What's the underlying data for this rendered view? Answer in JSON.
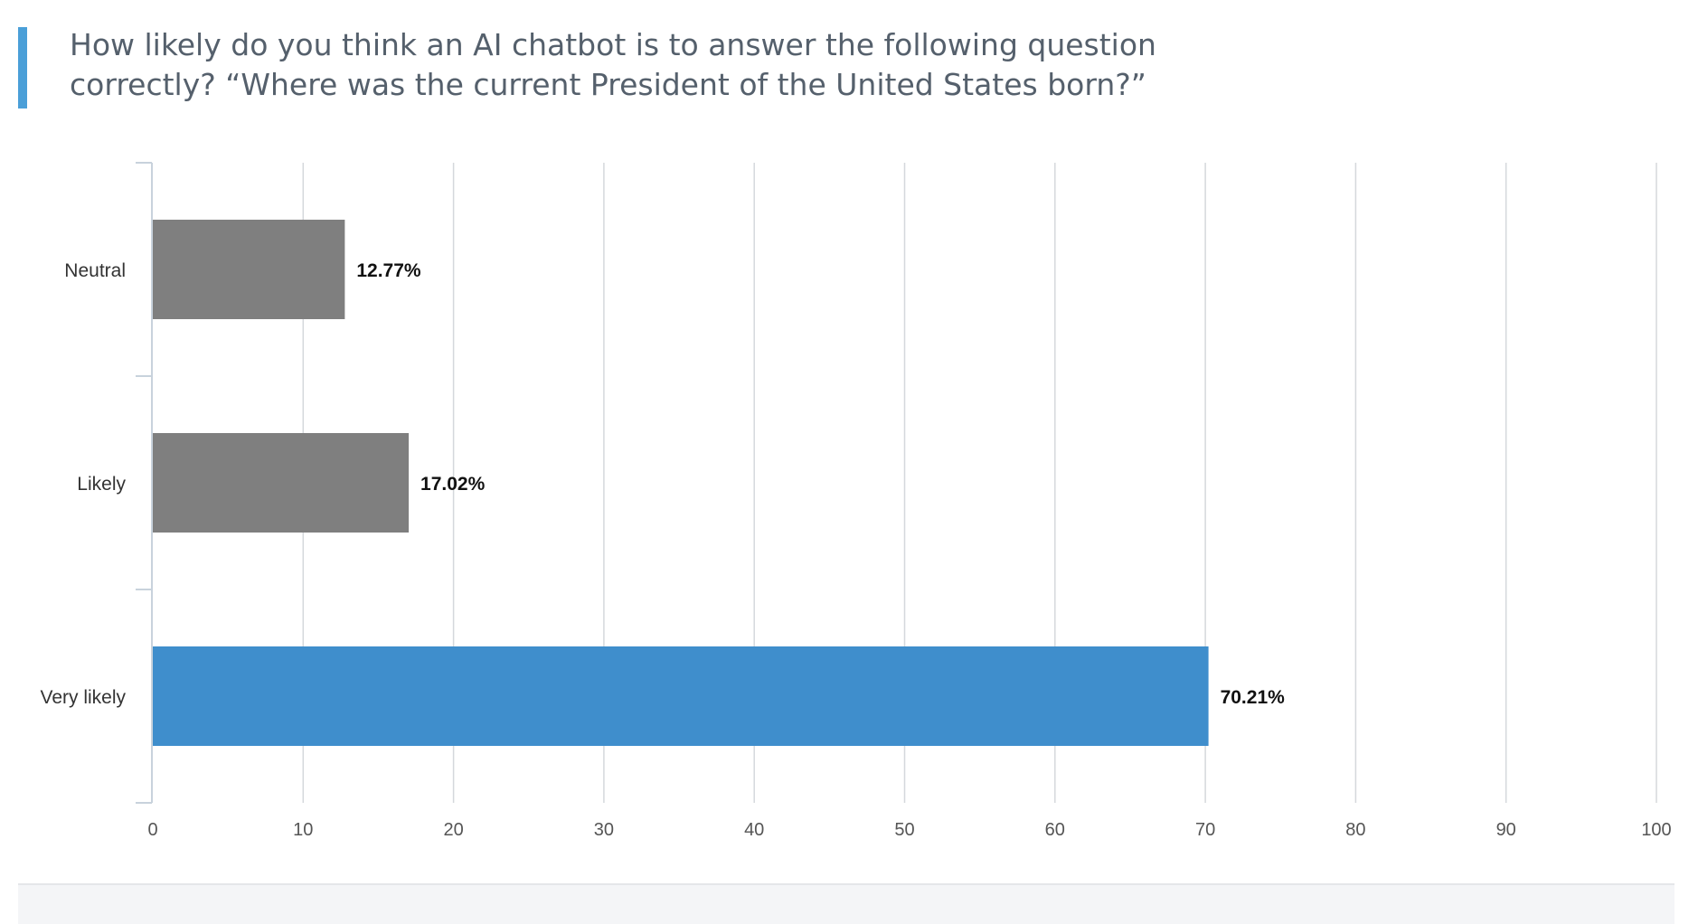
{
  "chart_data": {
    "type": "bar",
    "orientation": "horizontal",
    "title": "How likely do you think an AI chatbot is to answer the following question correctly?  “Where was the current President of the United States born?”",
    "categories": [
      "Neutral",
      "Likely",
      "Very likely"
    ],
    "values": [
      12.77,
      17.02,
      70.21
    ],
    "data_labels": [
      "12.77%",
      "17.02%",
      "70.21%"
    ],
    "bar_colors": [
      "#7f7f7f",
      "#7f7f7f",
      "#3f8ecc"
    ],
    "xlabel": "",
    "ylabel": "",
    "xlim": [
      0,
      100
    ],
    "xticks": [
      0,
      10,
      20,
      30,
      40,
      50,
      60,
      70,
      80,
      90,
      100
    ],
    "grid": true,
    "legend": "none"
  },
  "colors": {
    "accent": "#4a9fd8",
    "highlight_bar": "#3f8ecc",
    "default_bar": "#7f7f7f",
    "gridline": "#d5d8dc",
    "title_text": "#55606c"
  }
}
